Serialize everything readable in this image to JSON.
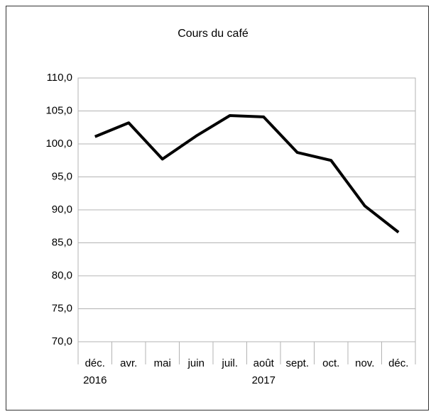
{
  "chart_data": {
    "type": "line",
    "title": "Cours du café",
    "categories": [
      "déc.",
      "avr.",
      "mai",
      "juin",
      "juil.",
      "août",
      "sept.",
      "oct.",
      "nov.",
      "déc."
    ],
    "category_groups": [
      {
        "label": "2016",
        "start": 0,
        "end": 0
      },
      {
        "label": "2017",
        "start": 1,
        "end": 9
      }
    ],
    "values": [
      101.1,
      103.2,
      97.7,
      101.2,
      104.3,
      104.1,
      98.7,
      97.5,
      90.6,
      86.6
    ],
    "color": "#000000",
    "ylim": [
      70,
      110
    ],
    "yticks": [
      {
        "value": 70,
        "label": "70,0"
      },
      {
        "value": 75,
        "label": "75,0"
      },
      {
        "value": 80,
        "label": "80,0"
      },
      {
        "value": 85,
        "label": "85,0"
      },
      {
        "value": 90,
        "label": "90,0"
      },
      {
        "value": 95,
        "label": "95,0"
      },
      {
        "value": 100,
        "label": "100,0"
      },
      {
        "value": 105,
        "label": "105,0"
      },
      {
        "value": 110,
        "label": "110,0"
      }
    ],
    "grid": true
  }
}
